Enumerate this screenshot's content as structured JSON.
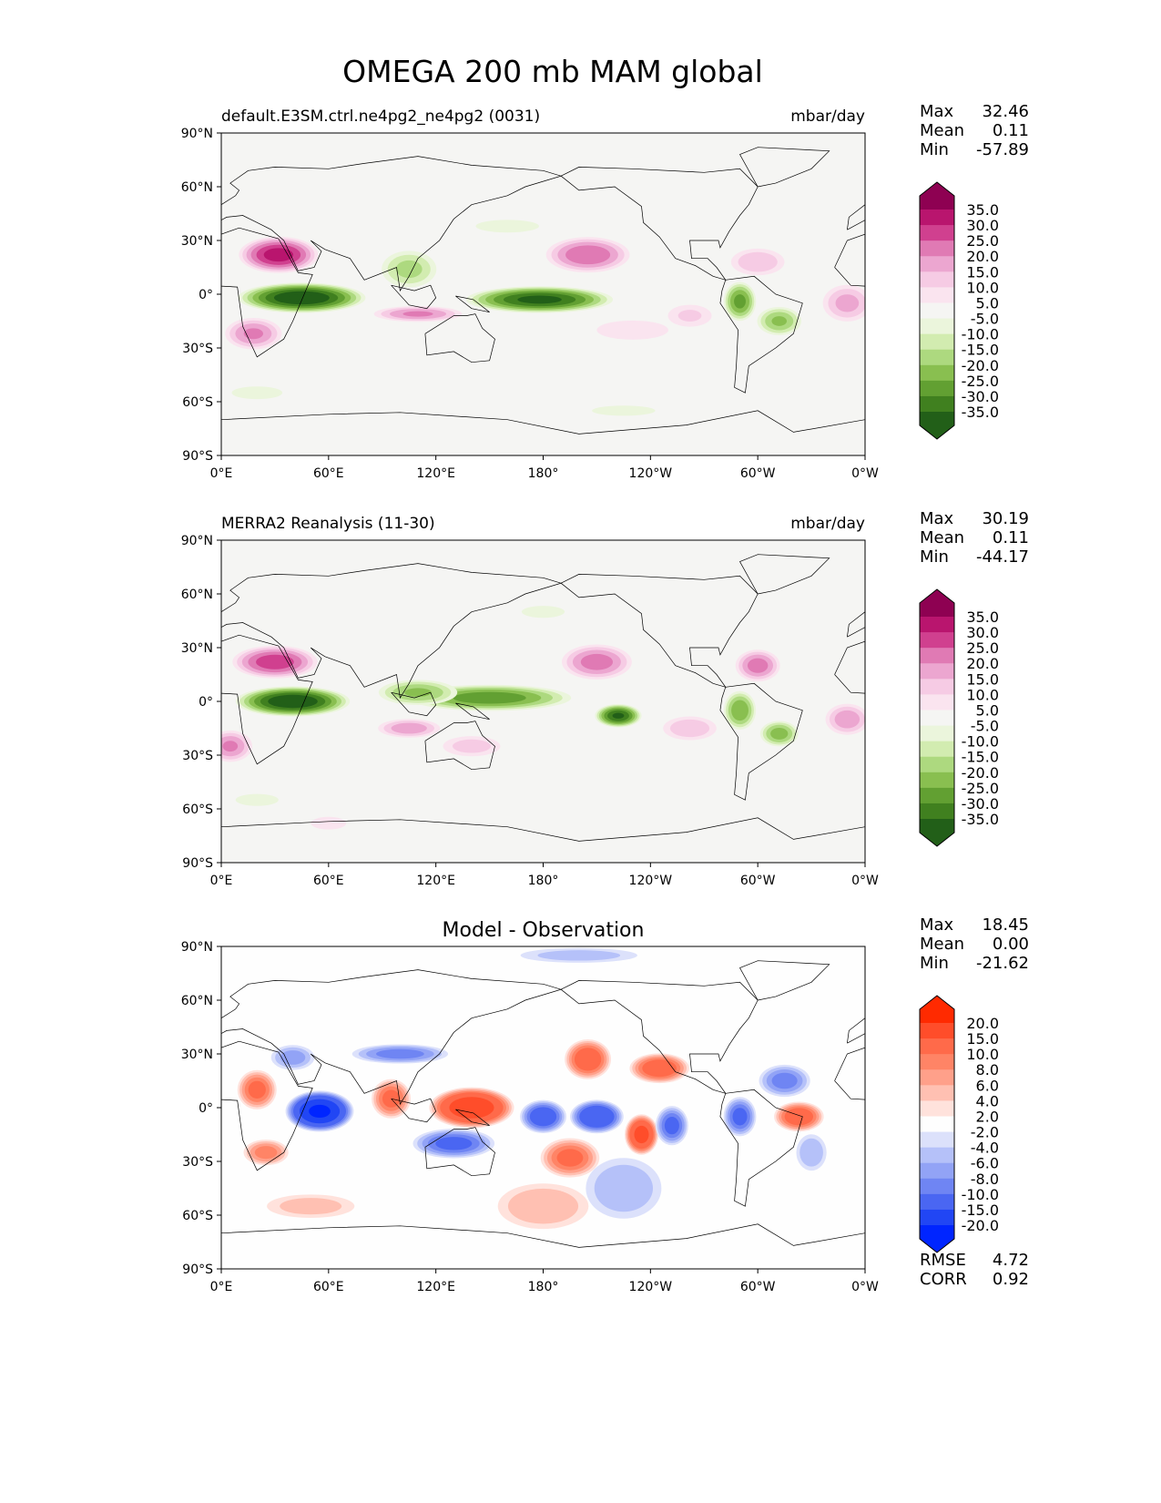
{
  "title": "OMEGA 200 mb MAM global",
  "lat_ticks": [
    "90°N",
    "60°N",
    "30°N",
    "0°",
    "30°S",
    "60°S",
    "90°S"
  ],
  "lon_ticks": [
    "0°E",
    "60°E",
    "120°E",
    "180°",
    "120°W",
    "60°W",
    "0°W"
  ],
  "chart_data": [
    {
      "type": "heatmap",
      "title_left": "default.E3SM.ctrl.ne4pg2_ne4pg2 (0031)",
      "title_right": "mbar/day",
      "title_center": "",
      "stats": {
        "Max": "32.46",
        "Mean": "0.11",
        "Min": "-57.89"
      },
      "colorbar": "test",
      "blobs": [
        {
          "lon": 32,
          "lat": 22,
          "rx": 24,
          "ry": 11,
          "v": 32
        },
        {
          "lon": 205,
          "lat": 22,
          "rx": 26,
          "ry": 11,
          "v": 24
        },
        {
          "lon": 45,
          "lat": -2,
          "rx": 38,
          "ry": 9,
          "v": -40
        },
        {
          "lon": 178,
          "lat": -3,
          "rx": 44,
          "ry": 8,
          "v": -36
        },
        {
          "lon": 105,
          "lat": 14,
          "rx": 18,
          "ry": 12,
          "v": -16
        },
        {
          "lon": 290,
          "lat": -4,
          "rx": 10,
          "ry": 12,
          "v": -26
        },
        {
          "lon": 312,
          "lat": -15,
          "rx": 14,
          "ry": 9,
          "v": -20
        },
        {
          "lon": 110,
          "lat": -11,
          "rx": 28,
          "ry": 5,
          "v": 20
        },
        {
          "lon": 18,
          "lat": -22,
          "rx": 18,
          "ry": 10,
          "v": 20
        },
        {
          "lon": 350,
          "lat": -5,
          "rx": 16,
          "ry": 12,
          "v": 16
        },
        {
          "lon": 300,
          "lat": 18,
          "rx": 18,
          "ry": 9,
          "v": 14
        },
        {
          "lon": 262,
          "lat": -12,
          "rx": 16,
          "ry": 8,
          "v": 10
        },
        {
          "lon": 230,
          "lat": -20,
          "rx": 30,
          "ry": 8,
          "v": 7
        },
        {
          "lon": 20,
          "lat": -55,
          "rx": 20,
          "ry": 5,
          "v": -8
        },
        {
          "lon": 225,
          "lat": -65,
          "rx": 25,
          "ry": 4,
          "v": -8
        },
        {
          "lon": 160,
          "lat": 38,
          "rx": 25,
          "ry": 5,
          "v": -8
        }
      ]
    },
    {
      "type": "heatmap",
      "title_left": "MERRA2 Reanalysis (11-30)",
      "title_right": "mbar/day",
      "title_center": "",
      "stats": {
        "Max": "30.19",
        "Mean": "0.11",
        "Min": "-44.17"
      },
      "colorbar": "test",
      "blobs": [
        {
          "lon": 30,
          "lat": 22,
          "rx": 26,
          "ry": 10,
          "v": 28
        },
        {
          "lon": 210,
          "lat": 22,
          "rx": 22,
          "ry": 11,
          "v": 22
        },
        {
          "lon": 300,
          "lat": 20,
          "rx": 14,
          "ry": 10,
          "v": 22
        },
        {
          "lon": 40,
          "lat": 0,
          "rx": 34,
          "ry": 9,
          "v": -40
        },
        {
          "lon": 150,
          "lat": 2,
          "rx": 50,
          "ry": 8,
          "v": -28
        },
        {
          "lon": 222,
          "lat": -8,
          "rx": 14,
          "ry": 7,
          "v": -35
        },
        {
          "lon": 110,
          "lat": 5,
          "rx": 25,
          "ry": 8,
          "v": -20
        },
        {
          "lon": 290,
          "lat": -5,
          "rx": 10,
          "ry": 12,
          "v": -24
        },
        {
          "lon": 312,
          "lat": -18,
          "rx": 12,
          "ry": 8,
          "v": -22
        },
        {
          "lon": 105,
          "lat": -15,
          "rx": 20,
          "ry": 6,
          "v": 18
        },
        {
          "lon": 140,
          "lat": -25,
          "rx": 20,
          "ry": 7,
          "v": 12
        },
        {
          "lon": 5,
          "lat": -25,
          "rx": 14,
          "ry": 10,
          "v": 20
        },
        {
          "lon": 350,
          "lat": -10,
          "rx": 14,
          "ry": 10,
          "v": 18
        },
        {
          "lon": 262,
          "lat": -15,
          "rx": 18,
          "ry": 8,
          "v": 14
        },
        {
          "lon": 180,
          "lat": 50,
          "rx": 18,
          "ry": 5,
          "v": -7
        },
        {
          "lon": 20,
          "lat": -55,
          "rx": 18,
          "ry": 5,
          "v": -7
        },
        {
          "lon": 60,
          "lat": -68,
          "rx": 14,
          "ry": 5,
          "v": 8
        }
      ]
    },
    {
      "type": "heatmap",
      "title_left": "",
      "title_right": "",
      "title_center": "Model - Observation",
      "stats": {
        "Max": "18.45",
        "Mean": "0.00",
        "Min": "-21.62"
      },
      "extra_stats": {
        "RMSE": "4.72",
        "CORR": "0.92"
      },
      "colorbar": "diff",
      "blobs": [
        {
          "lon": 55,
          "lat": -2,
          "rx": 20,
          "ry": 12,
          "v": -20
        },
        {
          "lon": 140,
          "lat": 0,
          "rx": 25,
          "ry": 12,
          "v": 18
        },
        {
          "lon": 95,
          "lat": 5,
          "rx": 12,
          "ry": 12,
          "v": 10
        },
        {
          "lon": 20,
          "lat": 10,
          "rx": 12,
          "ry": 12,
          "v": 10
        },
        {
          "lon": 25,
          "lat": -25,
          "rx": 14,
          "ry": 8,
          "v": 8
        },
        {
          "lon": 180,
          "lat": -5,
          "rx": 14,
          "ry": 10,
          "v": -12
        },
        {
          "lon": 210,
          "lat": -5,
          "rx": 16,
          "ry": 10,
          "v": -14
        },
        {
          "lon": 235,
          "lat": -15,
          "rx": 10,
          "ry": 12,
          "v": 16
        },
        {
          "lon": 252,
          "lat": -10,
          "rx": 10,
          "ry": 12,
          "v": -10
        },
        {
          "lon": 205,
          "lat": 27,
          "rx": 14,
          "ry": 12,
          "v": 12
        },
        {
          "lon": 245,
          "lat": 22,
          "rx": 18,
          "ry": 9,
          "v": 12
        },
        {
          "lon": 315,
          "lat": 15,
          "rx": 16,
          "ry": 10,
          "v": -8
        },
        {
          "lon": 290,
          "lat": -5,
          "rx": 10,
          "ry": 12,
          "v": -10
        },
        {
          "lon": 323,
          "lat": -5,
          "rx": 15,
          "ry": 9,
          "v": 12
        },
        {
          "lon": 130,
          "lat": -20,
          "rx": 25,
          "ry": 9,
          "v": -10
        },
        {
          "lon": 195,
          "lat": -28,
          "rx": 18,
          "ry": 12,
          "v": 10
        },
        {
          "lon": 100,
          "lat": 30,
          "rx": 30,
          "ry": 6,
          "v": -8
        },
        {
          "lon": 40,
          "lat": 28,
          "rx": 14,
          "ry": 8,
          "v": -6
        },
        {
          "lon": 180,
          "lat": -55,
          "rx": 30,
          "ry": 15,
          "v": 5
        },
        {
          "lon": 225,
          "lat": -45,
          "rx": 25,
          "ry": 20,
          "v": -5
        },
        {
          "lon": 50,
          "lat": -55,
          "rx": 30,
          "ry": 8,
          "v": 4
        },
        {
          "lon": 330,
          "lat": -25,
          "rx": 10,
          "ry": 12,
          "v": -5
        },
        {
          "lon": 200,
          "lat": 85,
          "rx": 40,
          "ry": 5,
          "v": -4
        }
      ]
    }
  ],
  "colorbars": {
    "test": {
      "labels": [
        "35.0",
        "30.0",
        "25.0",
        "20.0",
        "15.0",
        "10.0",
        "5.0",
        "-5.0",
        "-10.0",
        "-15.0",
        "-20.0",
        "-25.0",
        "-30.0",
        "-35.0"
      ],
      "levels": [
        35,
        30,
        25,
        20,
        15,
        10,
        5,
        -5,
        -10,
        -15,
        -20,
        -25,
        -30,
        -35
      ],
      "colors": [
        "#8e0152",
        "#b9156e",
        "#d0408f",
        "#e07ab4",
        "#eca6d0",
        "#f6cbe4",
        "#fae4ef",
        "#f5f5f3",
        "#ebf5dc",
        "#d2ecb0",
        "#add97f",
        "#89bf50",
        "#62a032",
        "#40801f",
        "#225f18"
      ]
    },
    "diff": {
      "labels": [
        "20.0",
        "15.0",
        "10.0",
        "8.0",
        "6.0",
        "4.0",
        "2.0",
        "-2.0",
        "-4.0",
        "-6.0",
        "-8.0",
        "-10.0",
        "-15.0",
        "-20.0"
      ],
      "levels": [
        20,
        15,
        10,
        8,
        6,
        4,
        2,
        -2,
        -4,
        -6,
        -8,
        -10,
        -15,
        -20
      ],
      "colors": [
        "#ff2a00",
        "#ff4d2a",
        "#ff6a4a",
        "#ff8466",
        "#ffa08a",
        "#ffc0b2",
        "#ffe2dc",
        "#fefefe",
        "#dce1fb",
        "#b5c1f9",
        "#92a3f6",
        "#6f85f3",
        "#4a66f2",
        "#2146f4",
        "#0025ff"
      ]
    }
  }
}
